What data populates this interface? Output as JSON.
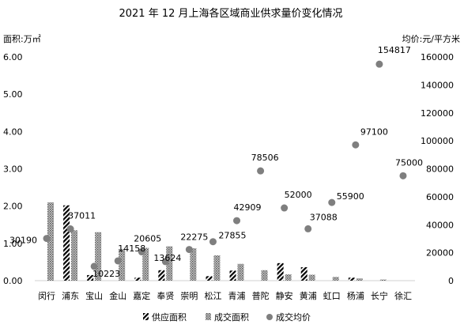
{
  "chart_data": {
    "type": "bar",
    "title": "2021 年 12 月上海各区域商业供求量价变化情况",
    "ylabel_left": "面积:万㎡",
    "ylabel_right": "均价:元/平方米",
    "ylim_left": [
      0,
      6
    ],
    "ylim_right": [
      0,
      160000
    ],
    "yticks_left": [
      "0.00",
      "1.00",
      "2.00",
      "3.00",
      "4.00",
      "5.00",
      "6.00"
    ],
    "yticks_right": [
      "0",
      "20000",
      "40000",
      "60000",
      "80000",
      "100000",
      "120000",
      "140000",
      "160000"
    ],
    "categories": [
      "闵行",
      "浦东",
      "宝山",
      "金山",
      "嘉定",
      "奉贤",
      "崇明",
      "松江",
      "青浦",
      "普陀",
      "静安",
      "黄浦",
      "虹口",
      "杨浦",
      "长宁",
      "徐汇"
    ],
    "series": [
      {
        "name": "供应面积",
        "kind": "bar",
        "axis": "left",
        "pattern": "diagonal",
        "values": [
          0,
          2.02,
          0.15,
          0,
          0.08,
          0.28,
          0,
          0.12,
          0.27,
          0,
          0.47,
          0.36,
          0,
          0.08,
          0,
          0
        ]
      },
      {
        "name": "成交面积",
        "kind": "bar",
        "axis": "left",
        "pattern": "dots",
        "values": [
          2.1,
          1.35,
          1.3,
          0.85,
          0.88,
          0.92,
          0.87,
          0.68,
          0.45,
          0.28,
          0.17,
          0.16,
          0.1,
          0.06,
          0.03,
          0
        ]
      },
      {
        "name": "成交均价",
        "kind": "scatter",
        "axis": "right",
        "values": [
          30190,
          37011,
          10223,
          14158,
          20605,
          13624,
          22275,
          27855,
          42909,
          78506,
          52000,
          37088,
          55900,
          97100,
          154817,
          75000
        ],
        "labels": [
          "30190",
          "37011",
          "10223",
          "14158",
          "20605",
          "13624",
          "22275",
          "27855",
          "42909",
          "78506",
          "52000",
          "37088",
          "55900",
          "97100",
          "154817",
          "75000"
        ]
      }
    ],
    "legend_position": "bottom",
    "grid": false
  }
}
